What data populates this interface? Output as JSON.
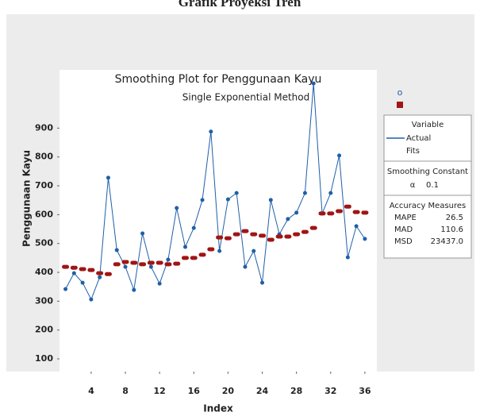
{
  "page_title": "Grafik Proyeksi Tren",
  "chart_data": {
    "type": "line",
    "title": "Smoothing Plot for Penggunaan Kayu",
    "subtitle": "Single Exponential Method",
    "xlabel": "Index",
    "ylabel": "Penggunaan Kayu",
    "x": [
      1,
      2,
      3,
      4,
      5,
      6,
      7,
      8,
      9,
      10,
      11,
      12,
      13,
      14,
      15,
      16,
      17,
      18,
      19,
      20,
      21,
      22,
      23,
      24,
      25,
      26,
      27,
      28,
      29,
      30,
      31,
      32,
      33,
      34,
      35,
      36
    ],
    "series": [
      {
        "name": "Actual",
        "color": "#1f5fa8",
        "values": [
          342,
          397,
          364,
          306,
          383,
          728,
          477,
          419,
          339,
          535,
          419,
          361,
          444,
          623,
          488,
          554,
          651,
          888,
          474,
          653,
          675,
          419,
          474,
          364,
          651,
          532,
          585,
          607,
          675,
          1055,
          604,
          675,
          805,
          452,
          560,
          516
        ]
      },
      {
        "name": "Fits",
        "color": "#a01515",
        "values": [
          419,
          416,
          411,
          408,
          397,
          394,
          428,
          436,
          433,
          428,
          433,
          433,
          428,
          430,
          450,
          450,
          461,
          480,
          521,
          518,
          532,
          543,
          532,
          527,
          513,
          524,
          524,
          532,
          540,
          554,
          604,
          604,
          612,
          628,
          609,
          607
        ]
      }
    ],
    "xlim": [
      0.3,
      37.4
    ],
    "xticks": [
      4,
      8,
      12,
      16,
      20,
      24,
      28,
      32,
      36
    ],
    "ylim": [
      56,
      1102
    ],
    "yticks": [
      100,
      200,
      300,
      400,
      500,
      600,
      700,
      800,
      900
    ],
    "legend": {
      "title": "Variable"
    },
    "smoothing": {
      "title": "Smoothing Constant",
      "symbol": "α",
      "value": "0.1"
    },
    "accuracy": {
      "title": "Accuracy Measures",
      "rows": [
        {
          "label": "MAPE",
          "value": "26.5"
        },
        {
          "label": "MAD",
          "value": "110.6"
        },
        {
          "label": "MSD",
          "value": "23437.0"
        }
      ]
    }
  }
}
